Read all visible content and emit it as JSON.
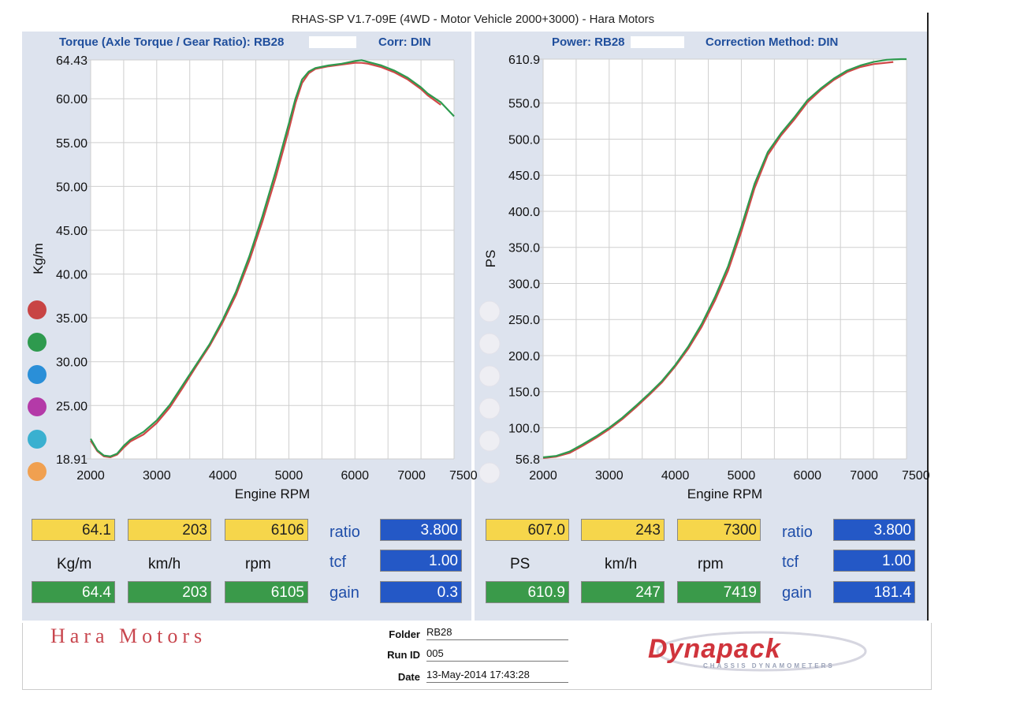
{
  "title": "RHAS-SP V1.7-09E  (4WD - Motor Vehicle 2000+3000) - Hara Motors",
  "left_header": {
    "label": "Torque (Axle Torque / Gear Ratio): RB28",
    "corr": "Corr: DIN"
  },
  "right_header": {
    "label": "Power: RB28",
    "corr": "Correction Method: DIN"
  },
  "legend_colors": [
    "#c84444",
    "#2e9a4e",
    "#2a8fd8",
    "#b43aa8",
    "#3ab0d0",
    "#f0a050"
  ],
  "colors": {
    "red": "#d04848",
    "green": "#2e9a4e",
    "yellow": "#f6d64b",
    "blue": "#2458c6"
  },
  "chart_data": [
    {
      "type": "line",
      "xlabel": "Engine RPM",
      "ylabel": "Kg/m",
      "xlim": [
        2000,
        7500
      ],
      "ylim": [
        18.91,
        64.43
      ],
      "xticks": [
        2000,
        3000,
        4000,
        5000,
        6000,
        7000,
        7500
      ],
      "yticks": [
        18.91,
        25.0,
        30.0,
        35.0,
        40.0,
        45.0,
        50.0,
        55.0,
        60.0,
        64.43
      ],
      "ytick_labels": [
        "18.91",
        "25.00",
        "30.00",
        "35.00",
        "40.00",
        "45.00",
        "50.00",
        "55.00",
        "60.00",
        "64.43"
      ],
      "series": [
        {
          "color": "#d04848",
          "x": [
            2000,
            2100,
            2200,
            2300,
            2400,
            2500,
            2600,
            2800,
            3000,
            3200,
            3400,
            3600,
            3800,
            4000,
            4200,
            4400,
            4600,
            4800,
            5000,
            5100,
            5200,
            5300,
            5400,
            5600,
            5800,
            6000,
            6100,
            6200,
            6400,
            6600,
            6800,
            7000,
            7100,
            7300
          ],
          "y": [
            21.0,
            19.8,
            19.2,
            19.1,
            19.4,
            20.2,
            20.9,
            21.7,
            23.0,
            24.8,
            27.1,
            29.5,
            31.8,
            34.5,
            37.6,
            41.5,
            46.0,
            51.0,
            56.5,
            59.5,
            61.8,
            62.9,
            63.4,
            63.7,
            63.9,
            64.1,
            64.1,
            64.0,
            63.6,
            63.0,
            62.2,
            61.1,
            60.4,
            59.3
          ]
        },
        {
          "color": "#2e9a4e",
          "x": [
            2000,
            2100,
            2200,
            2300,
            2400,
            2500,
            2600,
            2800,
            3000,
            3200,
            3400,
            3600,
            3800,
            4000,
            4200,
            4400,
            4600,
            4800,
            5000,
            5100,
            5200,
            5300,
            5400,
            5600,
            5800,
            6000,
            6100,
            6200,
            6400,
            6600,
            6800,
            7000,
            7100,
            7300,
            7500
          ],
          "y": [
            21.2,
            19.9,
            19.3,
            19.2,
            19.5,
            20.4,
            21.1,
            22.0,
            23.3,
            25.1,
            27.4,
            29.7,
            32.0,
            34.8,
            38.0,
            42.0,
            46.6,
            51.7,
            57.2,
            60.0,
            62.2,
            63.1,
            63.5,
            63.8,
            64.0,
            64.3,
            64.4,
            64.2,
            63.8,
            63.2,
            62.4,
            61.3,
            60.6,
            59.6,
            58.0
          ]
        }
      ]
    },
    {
      "type": "line",
      "xlabel": "Engine RPM",
      "ylabel": "PS",
      "xlim": [
        2000,
        7500
      ],
      "ylim": [
        56.8,
        610.9
      ],
      "xticks": [
        2000,
        3000,
        4000,
        5000,
        6000,
        7000,
        7500
      ],
      "yticks": [
        56.8,
        100.0,
        150.0,
        200.0,
        250.0,
        300.0,
        350.0,
        400.0,
        450.0,
        500.0,
        550.0,
        610.9
      ],
      "ytick_labels": [
        "56.8",
        "100.0",
        "150.0",
        "200.0",
        "250.0",
        "300.0",
        "350.0",
        "400.0",
        "450.0",
        "500.0",
        "550.0",
        "610.9"
      ],
      "series": [
        {
          "color": "#d04848",
          "x": [
            2000,
            2200,
            2400,
            2600,
            2800,
            3000,
            3200,
            3400,
            3600,
            3800,
            4000,
            4200,
            4400,
            4600,
            4800,
            5000,
            5200,
            5400,
            5600,
            5800,
            6000,
            6200,
            6400,
            6600,
            6800,
            7000,
            7200,
            7300
          ],
          "y": [
            58,
            60,
            65,
            75,
            86,
            98,
            112,
            128,
            145,
            163,
            185,
            210,
            240,
            276,
            318,
            372,
            432,
            478,
            505,
            527,
            551,
            568,
            582,
            593,
            600,
            604,
            606,
            607
          ]
        },
        {
          "color": "#2e9a4e",
          "x": [
            2000,
            2200,
            2400,
            2600,
            2800,
            3000,
            3200,
            3400,
            3600,
            3800,
            4000,
            4200,
            4400,
            4600,
            4800,
            5000,
            5200,
            5400,
            5600,
            5800,
            6000,
            6200,
            6400,
            6600,
            6800,
            7000,
            7200,
            7300,
            7419,
            7500
          ],
          "y": [
            59,
            61,
            67,
            77,
            88,
            100,
            114,
            130,
            147,
            165,
            187,
            213,
            244,
            281,
            324,
            379,
            438,
            482,
            508,
            530,
            554,
            570,
            584,
            595,
            602,
            607,
            610,
            610.5,
            610.9,
            610.9
          ]
        }
      ]
    }
  ],
  "left_readout": {
    "row1": [
      "64.1",
      "203",
      "6106"
    ],
    "units": [
      "Kg/m",
      "km/h",
      "rpm"
    ],
    "row2": [
      "64.4",
      "203",
      "6105"
    ],
    "labels": [
      "ratio",
      "tcf",
      "gain"
    ],
    "params": [
      "3.800",
      "1.00",
      "0.3"
    ]
  },
  "right_readout": {
    "row1": [
      "607.0",
      "243",
      "7300"
    ],
    "units": [
      "PS",
      "km/h",
      "rpm"
    ],
    "row2": [
      "610.9",
      "247",
      "7419"
    ],
    "labels": [
      "ratio",
      "tcf",
      "gain"
    ],
    "params": [
      "3.800",
      "1.00",
      "181.4"
    ]
  },
  "footer": {
    "company": "Hara Motors",
    "folder_label": "Folder",
    "folder": "RB28",
    "runid_label": "Run ID",
    "runid": "005",
    "date_label": "Date",
    "date": "13-May-2014   17:43:28",
    "brand": "Dynapack",
    "brand_sub": "CHASSIS DYNAMOMETERS"
  }
}
